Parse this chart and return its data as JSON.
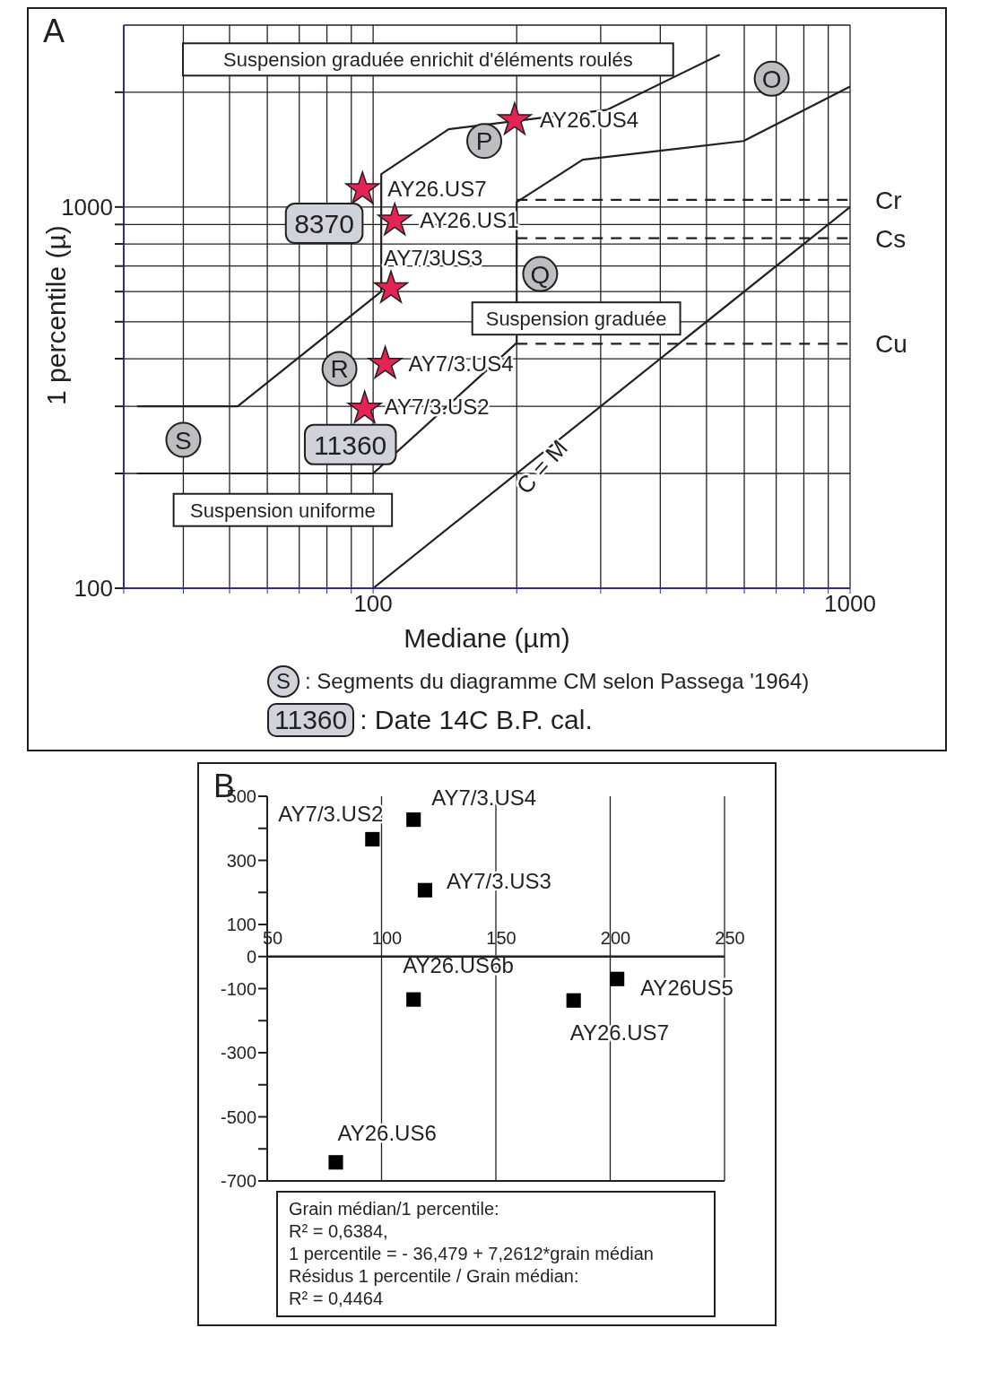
{
  "chart_data": [
    {
      "type": "scatter",
      "title": "A",
      "xlabel": "Mediane (µm)",
      "ylabel": "1 percentile (µ)",
      "log": "xy",
      "xlim": [
        30,
        1000
      ],
      "ylim": [
        100,
        3000
      ],
      "grid": true,
      "xticks": [
        {
          "value": 30,
          "label": null
        },
        {
          "value": 40,
          "label": null
        },
        {
          "value": 50,
          "label": null
        },
        {
          "value": 60,
          "label": null
        },
        {
          "value": 70,
          "label": null
        },
        {
          "value": 80,
          "label": null
        },
        {
          "value": 90,
          "label": null
        },
        100,
        {
          "value": 200,
          "label": null
        },
        {
          "value": 300,
          "label": null
        },
        {
          "value": 400,
          "label": null
        },
        {
          "value": 500,
          "label": null
        },
        {
          "value": 600,
          "label": null
        },
        {
          "value": 700,
          "label": null
        },
        {
          "value": 800,
          "label": null
        },
        {
          "value": 900,
          "label": null
        },
        1000
      ],
      "yticks": [
        100,
        {
          "value": 200,
          "label": null
        },
        {
          "value": 300,
          "label": null
        },
        {
          "value": 400,
          "label": null
        },
        {
          "value": 500,
          "label": null
        },
        {
          "value": 600,
          "label": null
        },
        {
          "value": 700,
          "label": null
        },
        {
          "value": 800,
          "label": null
        },
        {
          "value": 900,
          "label": null
        },
        1000,
        {
          "value": 2000,
          "label": null
        }
      ],
      "series": [
        {
          "type": "scatter",
          "marker": "star",
          "color": "#e62355",
          "x": [
            198,
            95,
            111,
            109,
            106,
            96
          ],
          "values": [
            1690,
            1113,
            921,
            612,
            388,
            296
          ],
          "value_labels": [
            "AY26.US4",
            "AY26.US7",
            "AY26.US1",
            "AY7/3US3",
            "AY7/3.US4",
            "AY7/3.US2"
          ]
        },
        {
          "type": "line",
          "color": "#231f20",
          "x": [
            32,
            52,
            104,
            104,
            144,
            310,
            533
          ],
          "values": [
            300,
            300,
            600,
            1220,
            1600,
            1800,
            2510
          ]
        },
        {
          "type": "line",
          "color": "#231f20",
          "x": [
            32,
            100,
            200,
            200,
            275,
            598,
            1000
          ],
          "values": [
            200,
            200,
            440,
            1030,
            1330,
            1490,
            2070
          ]
        },
        {
          "type": "line",
          "color": "#231f20",
          "x": [
            100,
            1000
          ],
          "values": [
            100,
            1000
          ]
        },
        {
          "type": "line",
          "name": "Cr",
          "color": "#231f20",
          "line_style": "dashed",
          "x": [
            200,
            1000
          ],
          "values": [
            1044,
            1044
          ]
        },
        {
          "type": "line",
          "name": "Cs",
          "color": "#231f20",
          "line_style": "dashed",
          "x": [
            200,
            1000
          ],
          "values": [
            828,
            828
          ]
        },
        {
          "type": "line",
          "name": "Cu",
          "color": "#231f20",
          "line_style": "dashed",
          "x": [
            200,
            1000
          ],
          "values": [
            438,
            438
          ]
        }
      ],
      "annotations": [
        {
          "text": "O",
          "x": 685,
          "y": 2170
        },
        {
          "text": "P",
          "x": 171,
          "y": 1490
        },
        {
          "text": "Q",
          "x": 224,
          "y": 667
        },
        {
          "text": "R",
          "x": 85,
          "y": 376
        },
        {
          "text": "S",
          "x": 40,
          "y": 245
        },
        "Suspension graduée enrichit d'éléments roulés",
        "Suspension graduée",
        "Suspension uniforme",
        "8370",
        "11360",
        "C = M",
        "S : Segments du diagramme CM selon Passega '1964)",
        "11360 : Date 14C B.P. cal."
      ]
    },
    {
      "type": "scatter",
      "title": "B",
      "xlim": [
        50,
        250
      ],
      "ylim": [
        -700,
        500
      ],
      "grid": "x",
      "xticks": [
        50,
        100,
        150,
        200,
        250
      ],
      "yticks": [
        500,
        {
          "value": 400,
          "label": null
        },
        300,
        {
          "value": 200,
          "label": null
        },
        100,
        0,
        -100,
        {
          "value": -200,
          "label": null
        },
        -300,
        {
          "value": -400,
          "label": null
        },
        -500,
        {
          "value": -600,
          "label": null
        },
        -700
      ],
      "series": [
        {
          "type": "scatter",
          "marker": "square",
          "color": "#000000",
          "x": [
            96,
            114,
            119,
            114,
            184,
            203,
            80
          ],
          "values": [
            366,
            427,
            207,
            -134,
            -137,
            -70,
            -642
          ],
          "value_labels": [
            "AY7/3.US2",
            "AY7/3.US4",
            "AY7/3.US3",
            "AY26.US6b",
            "AY26.US7",
            "AY26US5",
            "AY26.US6"
          ]
        }
      ],
      "annotations": [
        "Grain médian/1 percentile:",
        "R² = 0,6384,",
        "1 percentile =  - 36,479 + 7,2612*grain médian",
        "Résidus 1 percentile / Grain médian:",
        "R² = 0,4464"
      ]
    }
  ]
}
